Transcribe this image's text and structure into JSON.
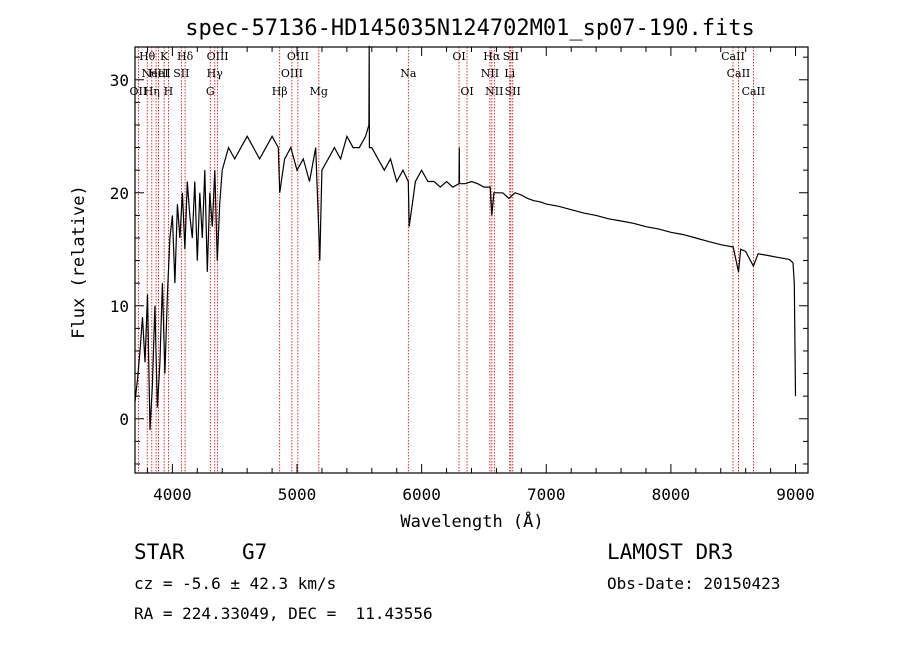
{
  "chart_data": {
    "type": "line",
    "title": "spec-57136-HD145035N124702M01_sp07-190.fits",
    "xlabel": "Wavelength (Å)",
    "ylabel": "Flux (relative)",
    "xlim": [
      3700,
      9100
    ],
    "ylim": [
      -4.8,
      32.9
    ],
    "xticks": [
      4000,
      5000,
      6000,
      7000,
      8000,
      9000
    ],
    "yticks": [
      0,
      10,
      20,
      30
    ],
    "series": [
      {
        "name": "flux",
        "x": [
          3700,
          3720,
          3740,
          3760,
          3780,
          3800,
          3820,
          3840,
          3860,
          3880,
          3900,
          3920,
          3940,
          3960,
          3980,
          4000,
          4020,
          4040,
          4060,
          4080,
          4100,
          4120,
          4140,
          4160,
          4180,
          4200,
          4220,
          4240,
          4260,
          4280,
          4300,
          4320,
          4340,
          4360,
          4380,
          4400,
          4450,
          4500,
          4550,
          4600,
          4650,
          4700,
          4750,
          4800,
          4850,
          4861,
          4900,
          4950,
          5000,
          5050,
          5100,
          5150,
          5170,
          5183,
          5200,
          5250,
          5300,
          5350,
          5400,
          5450,
          5500,
          5550,
          5577,
          5579,
          5581,
          5600,
          5650,
          5700,
          5750,
          5800,
          5850,
          5893,
          5900,
          5950,
          6000,
          6050,
          6100,
          6150,
          6200,
          6250,
          6300,
          6302,
          6304,
          6350,
          6400,
          6450,
          6500,
          6550,
          6563,
          6580,
          6600,
          6650,
          6700,
          6750,
          6800,
          6850,
          6900,
          6950,
          7000,
          7100,
          7200,
          7300,
          7400,
          7500,
          7600,
          7700,
          7800,
          7900,
          8000,
          8100,
          8200,
          8300,
          8400,
          8500,
          8542,
          8560,
          8600,
          8662,
          8700,
          8750,
          8800,
          8850,
          8900,
          8950,
          8980,
          8990,
          9000
        ],
        "values": [
          1.5,
          3.5,
          6,
          9,
          5,
          11,
          -1,
          3,
          10,
          1,
          5,
          12,
          4,
          11,
          16,
          18,
          12,
          19,
          16,
          20,
          15,
          21,
          18,
          16,
          21,
          14,
          20,
          16,
          22,
          13,
          20,
          17,
          22,
          14,
          19,
          22,
          24,
          23,
          24,
          25,
          24,
          23,
          24,
          25,
          24,
          20,
          23,
          24,
          22,
          23,
          21,
          24,
          18,
          14,
          22,
          23,
          24,
          23,
          25,
          24,
          24,
          25,
          26,
          33,
          24,
          24,
          23,
          22,
          23,
          21,
          22,
          21,
          17,
          21,
          22,
          21,
          21,
          20.5,
          21,
          20.5,
          20.8,
          24,
          20.8,
          20.8,
          21,
          20.8,
          20.5,
          20.5,
          18,
          20,
          20,
          20,
          19.5,
          20,
          19.8,
          19.5,
          19.3,
          19.2,
          19,
          18.8,
          18.5,
          18.2,
          18,
          17.7,
          17.5,
          17.3,
          17,
          16.8,
          16.5,
          16.3,
          16,
          15.7,
          15.4,
          15.2,
          13,
          15,
          14.8,
          13.5,
          14.6,
          14.5,
          14.4,
          14.3,
          14.2,
          14.1,
          13.8,
          12,
          2
        ]
      }
    ],
    "lines": [
      {
        "wl": 3727,
        "label": "OII",
        "row": 2
      },
      {
        "wl": 3798,
        "label": "Hθ",
        "row": 0
      },
      {
        "wl": 3835,
        "label": "Hη",
        "row": 2
      },
      {
        "wl": 3869,
        "label": "NeIII",
        "row": 1
      },
      {
        "wl": 3889,
        "label": "HeI",
        "row": 1
      },
      {
        "wl": 3934,
        "label": "K",
        "row": 0
      },
      {
        "wl": 3968,
        "label": "H",
        "row": 2
      },
      {
        "wl": 4072,
        "label": "SII",
        "row": 1
      },
      {
        "wl": 4102,
        "label": "Hδ",
        "row": 0
      },
      {
        "wl": 4304,
        "label": "G",
        "row": 2
      },
      {
        "wl": 4340,
        "label": "Hγ",
        "row": 1
      },
      {
        "wl": 4363,
        "label": "OIII",
        "row": 0
      },
      {
        "wl": 4861,
        "label": "Hβ",
        "row": 2
      },
      {
        "wl": 4959,
        "label": "OIII",
        "row": 1
      },
      {
        "wl": 5007,
        "label": "OIII",
        "row": 0
      },
      {
        "wl": 5175,
        "label": "Mg",
        "row": 2
      },
      {
        "wl": 5893,
        "label": "Na",
        "row": 1
      },
      {
        "wl": 6300,
        "label": "OI",
        "row": 0
      },
      {
        "wl": 6364,
        "label": "OI",
        "row": 2
      },
      {
        "wl": 6548,
        "label": "NII",
        "row": 1
      },
      {
        "wl": 6563,
        "label": "Hα",
        "row": 0
      },
      {
        "wl": 6583,
        "label": "NII",
        "row": 2
      },
      {
        "wl": 6707,
        "label": "Li",
        "row": 1
      },
      {
        "wl": 6716,
        "label": "SII",
        "row": 0
      },
      {
        "wl": 6731,
        "label": "SII",
        "row": 2
      },
      {
        "wl": 8498,
        "label": "CaII",
        "row": 0
      },
      {
        "wl": 8542,
        "label": "CaII",
        "row": 1
      },
      {
        "wl": 8662,
        "label": "CaII",
        "row": 2
      }
    ]
  },
  "info": {
    "class": "STAR",
    "subclass": "G7",
    "survey": "LAMOST DR3",
    "cz": "cz = -5.6 ± 42.3 km/s",
    "obs_date": "Obs-Date: 20150423",
    "coords": "RA = 224.33049, DEC =  11.43556"
  },
  "colors": {
    "line_marker": "#cc0000",
    "spectrum": "#000000"
  }
}
